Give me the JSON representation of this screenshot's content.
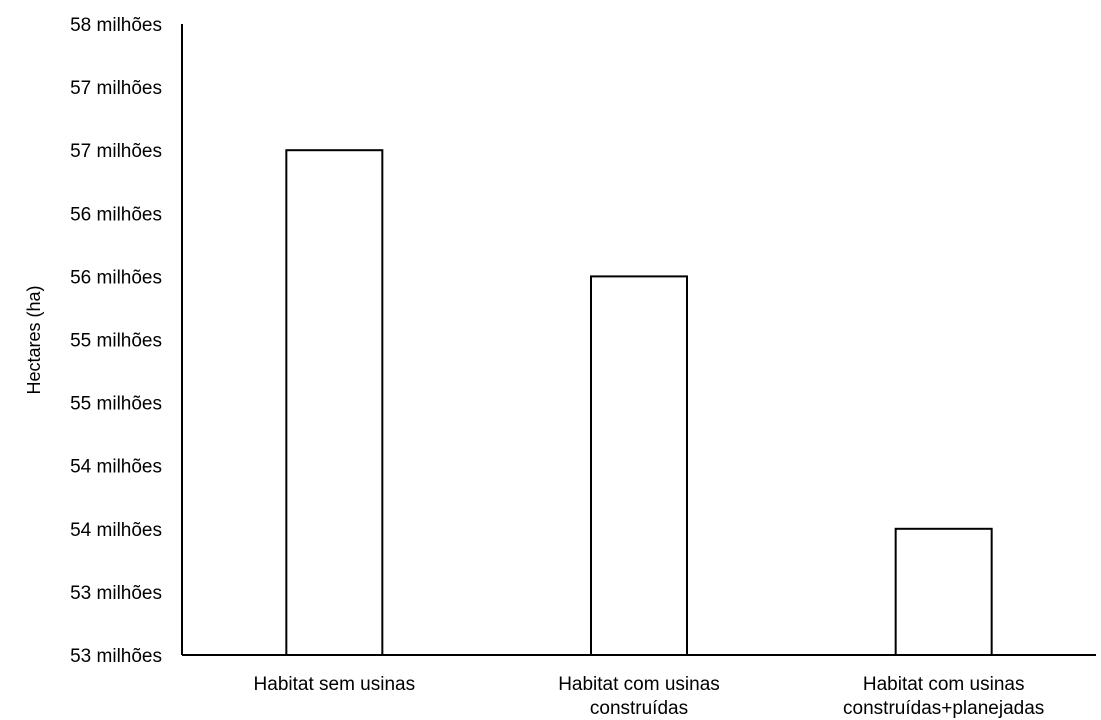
{
  "chart_data": {
    "type": "bar",
    "title": "",
    "xlabel": "",
    "ylabel": "Hectares (ha)",
    "categories": [
      [
        "Habitat sem usinas"
      ],
      [
        "Habitat com usinas",
        "construídas"
      ],
      [
        "Habitat com usinas",
        "construídas+planejadas"
      ]
    ],
    "values": [
      57000000,
      56000000,
      54000000
    ],
    "ylim": [
      53000000,
      58000000
    ],
    "ytick_labels": [
      "53 milhões",
      "53 milhões",
      "54 milhões",
      "54 milhões",
      "55 milhões",
      "55 milhões",
      "56 milhões",
      "56 milhões",
      "57 milhões",
      "57 milhões",
      "58 milhões"
    ],
    "grid": false,
    "legend": "none",
    "bar_fill": "#ffffff",
    "bar_stroke": "#000000"
  }
}
